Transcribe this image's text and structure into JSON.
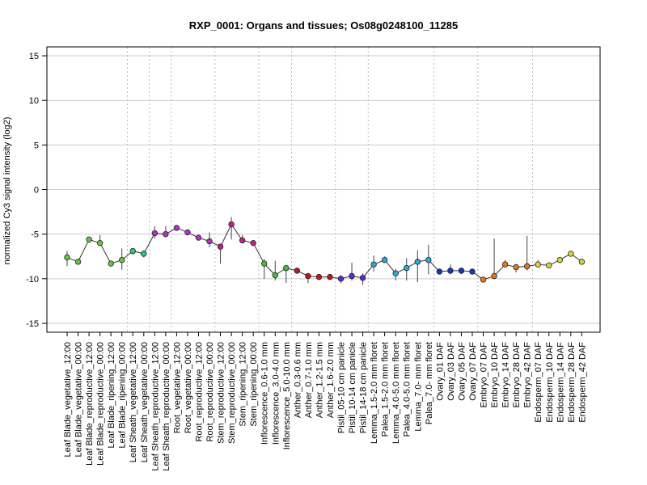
{
  "chart_data": {
    "type": "line",
    "title": "RXP_0001: Organs and tissues; Os08g0248100_11285",
    "xlabel": "",
    "ylabel": "normalized Cy3 signal intensity (log2)",
    "ylim": [
      -16,
      16
    ],
    "yticks": [
      15,
      10,
      5,
      0,
      -5,
      -10,
      -15
    ],
    "grid": true,
    "categories": [
      "Leaf Blade_vegetative_12:00",
      "Leaf Blade_vegetative_00:00",
      "Leaf Blade_reproductive_12:00",
      "Leaf Blade_reproductive_00:00",
      "Leaf Blade_ripening_12:00",
      "Leaf Blade_ripening_00:00",
      "Leaf Sheath_vegetative_12:00",
      "Leaf Sheath_vegetative_00:00",
      "Leaf Sheath_reproductive_12:00",
      "Leaf Sheath_reproductive_00:00",
      "Root_vegetative_12:00",
      "Root_vegetative_00:00",
      "Root_reproductive_12:00",
      "Root_reproductive_00:00",
      "Stem_reproductive_12:00",
      "Stem_reproductive_00:00",
      "Stem_ripening_12:00",
      "Stem_ripening_00:00",
      "Inflorescence_0.6-1.0 mm",
      "Inflorescence_3.0-4.0 mm",
      "Inflorescence_5.0-10.0 mm",
      "Anther_0.3-0.6 mm",
      "Anther_0.7-1.0 mm",
      "Anther_1.2-1.5 mm",
      "Anther_1.6-2.0 mm",
      "Pistil_05-10 cm panicle",
      "Pistil_10-14 cm panicle",
      "Pistil_14-18 cm panicle",
      "Lemma_1.5-2.0 mm floret",
      "Palea_1.5-2.0 mm floret",
      "Lemma_4.0-5.0 mm floret",
      "Palea_4.0-5.0 mm floret",
      "Lemma_7.0- mm floret",
      "Palea_7.0- mm floret",
      "Ovary_01 DAF",
      "Ovary_03 DAF",
      "Ovary_05 DAF",
      "Ovary_07 DAF",
      "Embryo_07 DAF",
      "Embryo_10 DAF",
      "Embryo_14 DAF",
      "Embryo_28 DAF",
      "Embryo_42 DAF",
      "Endosperm_07 DAF",
      "Endosperm_10 DAF",
      "Endosperm_14 DAF",
      "Endosperm_28 DAF",
      "Endosperm_42 DAF"
    ],
    "values": [
      -7.6,
      -8.1,
      -5.6,
      -6.0,
      -8.3,
      -7.9,
      -6.9,
      -7.2,
      -4.9,
      -5.0,
      -4.3,
      -4.8,
      -5.4,
      -5.8,
      -6.4,
      -3.9,
      -5.7,
      -6.0,
      -8.3,
      -9.6,
      -8.8,
      -9.1,
      -9.7,
      -9.8,
      -9.8,
      -10.0,
      -9.7,
      -9.9,
      -8.4,
      -7.9,
      -9.4,
      -8.8,
      -8.1,
      -7.9,
      -9.2,
      -9.1,
      -9.1,
      -9.2,
      -10.1,
      -9.7,
      -8.4,
      -8.7,
      -8.6,
      -8.4,
      -8.5,
      -7.9,
      -7.2,
      -8.1
    ],
    "err_low": [
      -8.6,
      -8.1,
      -5.6,
      -6.2,
      -8.3,
      -9.0,
      -6.9,
      -7.6,
      -5.5,
      -5.3,
      -4.3,
      -4.8,
      -5.4,
      -6.5,
      -8.3,
      -5.6,
      -5.9,
      -6.0,
      -10.0,
      -10.2,
      -10.5,
      -9.1,
      -10.5,
      -9.8,
      -9.8,
      -10.5,
      -10.2,
      -10.7,
      -9.2,
      -7.9,
      -10.2,
      -10.2,
      -10.4,
      -9.5,
      -9.5,
      -9.5,
      -9.5,
      -9.3,
      -10.2,
      -9.7,
      -8.5,
      -9.3,
      -9.1,
      -8.6,
      -8.5,
      -7.9,
      -7.3,
      -8.2
    ],
    "err_high": [
      -6.9,
      -7.8,
      -5.6,
      -5.1,
      -8.3,
      -6.6,
      -6.9,
      -6.8,
      -4.1,
      -4.1,
      -4.3,
      -4.8,
      -5.4,
      -4.8,
      -6.1,
      -3.1,
      -5.1,
      -6.0,
      -7.8,
      -8.0,
      -8.5,
      -9.1,
      -9.7,
      -9.8,
      -9.8,
      -9.6,
      -8.2,
      -9.4,
      -7.4,
      -7.5,
      -8.9,
      -7.7,
      -6.8,
      -6.2,
      -9.2,
      -8.4,
      -8.8,
      -9.2,
      -10.0,
      -5.5,
      -7.9,
      -8.4,
      -5.2,
      -7.9,
      -8.4,
      -7.7,
      -7.0,
      -7.9
    ],
    "colors": [
      "#5ec93a",
      "#5ec93a",
      "#5ec93a",
      "#5ec93a",
      "#5ec93a",
      "#5ec93a",
      "#27c97e",
      "#27c97e",
      "#b52fc5",
      "#b52fc5",
      "#b52fc5",
      "#b52fc5",
      "#b52fc5",
      "#b52fc5",
      "#c71f87",
      "#c71f87",
      "#c71f87",
      "#c71f87",
      "#38c43a",
      "#38c43a",
      "#38c43a",
      "#c41520",
      "#c41520",
      "#c41520",
      "#c41520",
      "#5a2bd6",
      "#5a2bd6",
      "#5a2bd6",
      "#2aa8d8",
      "#2aa8d8",
      "#2aa8d8",
      "#2aa8d8",
      "#2aa8d8",
      "#2aa8d8",
      "#1535c4",
      "#1535c4",
      "#1535c4",
      "#1535c4",
      "#e67817",
      "#e67817",
      "#e67817",
      "#e67817",
      "#e67817",
      "#d8d23a",
      "#d8d23a",
      "#d8d23a",
      "#d8d23a",
      "#d8d23a"
    ],
    "group_separators_after": [
      5,
      7,
      9,
      13,
      17,
      20,
      24,
      27,
      33,
      37,
      42
    ]
  }
}
